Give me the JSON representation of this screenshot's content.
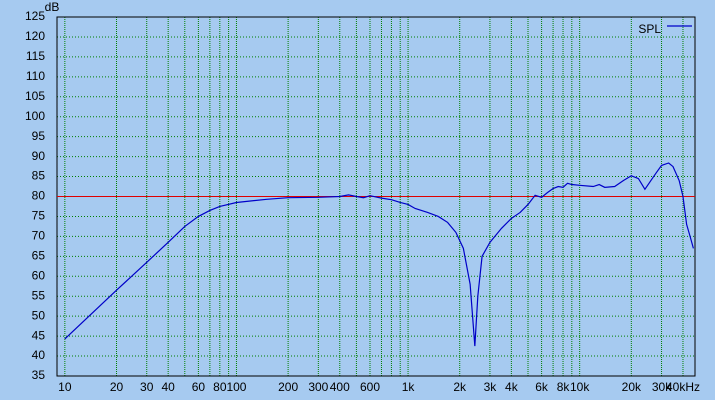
{
  "chart_data": {
    "type": "line",
    "y_label": "dB",
    "x_log": true,
    "xlim": [
      9,
      47000
    ],
    "ylim": [
      35,
      125
    ],
    "xticks": [
      10,
      20,
      30,
      40,
      60,
      80,
      100,
      200,
      300,
      400,
      600,
      {
        "value": 1000,
        "label": "1k"
      },
      {
        "value": 2000,
        "label": "2k"
      },
      {
        "value": 3000,
        "label": "3k"
      },
      {
        "value": 4000,
        "label": "4k"
      },
      {
        "value": 6000,
        "label": "6k"
      },
      {
        "value": 8000,
        "label": "8k"
      },
      {
        "value": 10000,
        "label": "10k"
      },
      {
        "value": 20000,
        "label": "20k"
      },
      {
        "value": 30000,
        "label": "30k"
      },
      {
        "value": 40000,
        "label": "40kHz"
      }
    ],
    "xminorticks": [
      50,
      70,
      90,
      500,
      700,
      800,
      900,
      5000,
      7000,
      9000
    ],
    "yticks": [
      35,
      40,
      45,
      50,
      55,
      60,
      65,
      70,
      75,
      80,
      85,
      90,
      95,
      100,
      105,
      110,
      115,
      120,
      125
    ],
    "grid": true,
    "reference_line": {
      "value": 80,
      "color": "#e00000"
    },
    "legend": "upper right",
    "x": [
      10,
      20,
      30,
      40,
      50,
      60,
      70,
      80,
      100,
      150,
      200,
      300,
      400,
      450,
      500,
      550,
      600,
      700,
      800,
      900,
      1000,
      1100,
      1300,
      1500,
      1700,
      1900,
      2100,
      2300,
      2450,
      2550,
      2700,
      3000,
      3500,
      4000,
      4500,
      5000,
      5500,
      6000,
      6500,
      7000,
      7500,
      8000,
      8500,
      9000,
      10000,
      12000,
      13000,
      14000,
      16000,
      18000,
      20000,
      22000,
      24000,
      26000,
      28000,
      30000,
      33000,
      35000,
      38000,
      40000,
      42000,
      44000,
      46000
    ],
    "series": [
      {
        "name": "SPL",
        "color": "#0000c8",
        "values": [
          44.3,
          56.5,
          63.5,
          68.5,
          72.5,
          75,
          76.5,
          77.5,
          78.5,
          79.3,
          79.7,
          79.8,
          80,
          80.4,
          80,
          79.7,
          80.2,
          79.6,
          79.2,
          78.5,
          78,
          77,
          76,
          75,
          73.5,
          71,
          67,
          58,
          42.5,
          55,
          65,
          68.5,
          72,
          74.5,
          76,
          78,
          80.3,
          79.8,
          81,
          82,
          82.5,
          82.3,
          83.3,
          83,
          82.8,
          82.5,
          83,
          82.3,
          82.5,
          84,
          85.2,
          84.5,
          81.8,
          84,
          86,
          87.8,
          88.4,
          87.5,
          84,
          80,
          73,
          70,
          67
        ]
      }
    ]
  }
}
